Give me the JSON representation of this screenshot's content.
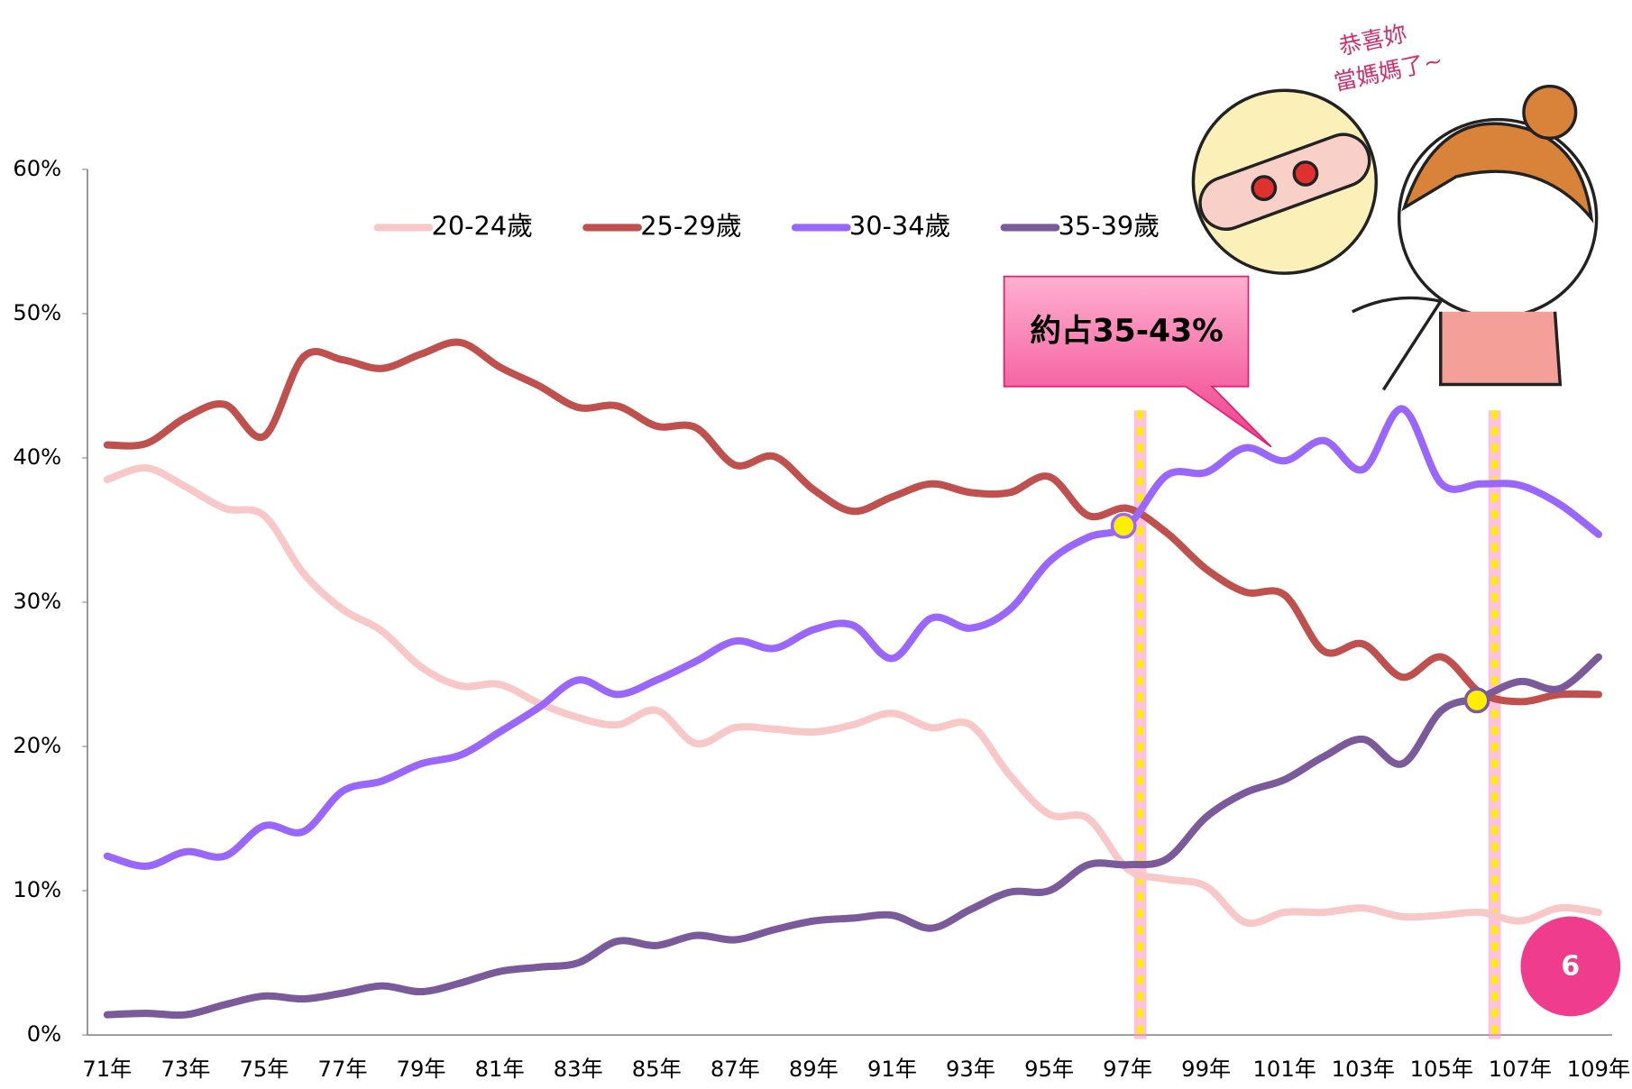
{
  "chart_data": {
    "type": "line",
    "categories": [
      "71年",
      null,
      "73年",
      null,
      "75年",
      null,
      "77年",
      null,
      "79年",
      null,
      "81年",
      null,
      "83年",
      null,
      "85年",
      null,
      "87年",
      null,
      "89年",
      null,
      "91年",
      null,
      "93年",
      null,
      "95年",
      null,
      "97年",
      null,
      "99年",
      null,
      "101年",
      null,
      "103年",
      null,
      "105年",
      null,
      "107年",
      null,
      "109年"
    ],
    "series": [
      {
        "name": "20-24歲",
        "color": "#f8c8c8",
        "values": [
          38.5,
          39.3,
          38,
          36.5,
          36,
          32,
          29.5,
          28,
          25.5,
          24.2,
          24.3,
          23,
          22,
          21.5,
          22.5,
          20.2,
          21.3,
          21.2,
          21,
          21.5,
          22.3,
          21.3,
          21.5,
          18,
          15.3,
          15,
          11.5,
          10.8,
          10.3,
          7.8,
          8.5,
          8.5,
          8.8,
          8.2,
          8.3,
          8.5,
          7.9,
          8.8,
          8.5
        ]
      },
      {
        "name": "25-29歲",
        "color": "#c0504d",
        "values": [
          40.9,
          41,
          42.8,
          43.7,
          41.5,
          47,
          46.8,
          46.2,
          47.2,
          48,
          46.3,
          45,
          43.5,
          43.6,
          42.2,
          42.1,
          39.5,
          40.1,
          37.8,
          36.3,
          37.3,
          38.2,
          37.6,
          37.6,
          38.7,
          36,
          36.5,
          34.8,
          32.3,
          30.7,
          30.5,
          26.6,
          27.1,
          24.8,
          26.2,
          23.7,
          23.1,
          23.6,
          23.6
        ]
      },
      {
        "name": "30-34歲",
        "color": "#9966ff",
        "values": [
          12.4,
          11.7,
          12.7,
          12.4,
          14.5,
          14.1,
          16.9,
          17.6,
          18.8,
          19.4,
          21,
          22.7,
          24.6,
          23.6,
          24.6,
          25.9,
          27.3,
          26.8,
          28.1,
          28.4,
          26.1,
          28.9,
          28.2,
          29.5,
          32.8,
          34.5,
          35.3,
          38.8,
          39,
          40.7,
          39.8,
          41.2,
          39.2,
          43.4,
          38.2,
          38.2,
          38.1,
          36.8,
          34.7
        ]
      },
      {
        "name": "35-39歲",
        "color": "#7a5a9a",
        "values": [
          1.4,
          1.5,
          1.4,
          2.1,
          2.7,
          2.5,
          2.9,
          3.4,
          3,
          3.6,
          4.4,
          4.7,
          5,
          6.5,
          6.2,
          6.9,
          6.6,
          7.3,
          7.9,
          8.1,
          8.3,
          7.4,
          8.7,
          9.9,
          10,
          11.8,
          11.8,
          12.2,
          15.1,
          16.8,
          17.7,
          19.3,
          20.5,
          18.8,
          22.5,
          23.4,
          24.5,
          24,
          26.2
        ]
      }
    ],
    "ylim": [
      0,
      60
    ],
    "yticks": [
      {
        "value": 0,
        "label": "0%"
      },
      {
        "value": 10,
        "label": "10%"
      },
      {
        "value": 20,
        "label": "20%"
      },
      {
        "value": 30,
        "label": "30%"
      },
      {
        "value": 40,
        "label": "40%"
      },
      {
        "value": 50,
        "label": "50%"
      },
      {
        "value": 60,
        "label": "60%"
      }
    ],
    "legend": "top",
    "annotation": "約占35-43%",
    "illustration_text": [
      "恭喜妳",
      "當媽媽了~"
    ],
    "page_number": "6"
  }
}
